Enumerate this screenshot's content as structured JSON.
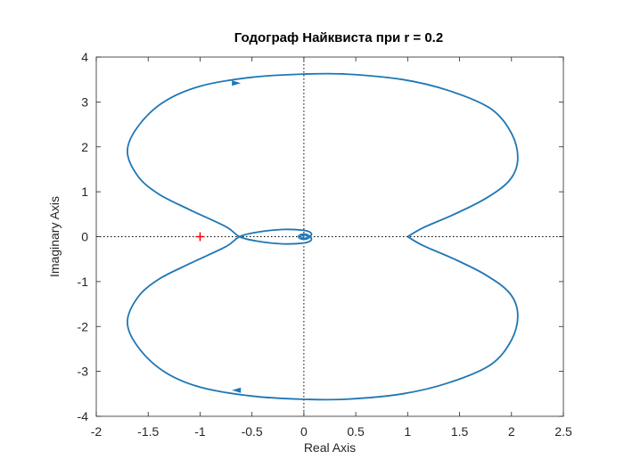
{
  "chart_data": {
    "type": "line",
    "title": "Годограф Найквиста при r = 0.2",
    "xlabel": "Real Axis",
    "ylabel": "Imaginary Axis",
    "xlim": [
      -2,
      2.5
    ],
    "ylim": [
      -4,
      4
    ],
    "xticks": [
      "-2",
      "-1.5",
      "-1",
      "-0.5",
      "0",
      "0.5",
      "1",
      "1.5",
      "2",
      "2.5"
    ],
    "yticks": [
      "-4",
      "-3",
      "-2",
      "-1",
      "0",
      "1",
      "2",
      "3",
      "4"
    ],
    "grid": false,
    "legend": "none",
    "colors": {
      "curve": "#1f77b4",
      "critical_point": "#ff0000",
      "axis_lines": "#000000"
    },
    "critical_point": {
      "x": -1,
      "y": 0,
      "marker": "+"
    },
    "reference_lines": {
      "x0_dotted": true,
      "y0_dotted": true
    },
    "series": [
      {
        "values_upper": [
          [
            1.0,
            0.0
          ],
          [
            1.15,
            0.2
          ],
          [
            1.45,
            0.5
          ],
          [
            1.75,
            0.85
          ],
          [
            1.98,
            1.25
          ],
          [
            2.06,
            1.72
          ],
          [
            2.0,
            2.3
          ],
          [
            1.8,
            2.85
          ],
          [
            1.4,
            3.25
          ],
          [
            0.95,
            3.5
          ],
          [
            0.4,
            3.62
          ],
          [
            0.0,
            3.62
          ],
          [
            -0.5,
            3.55
          ],
          [
            -1.0,
            3.35
          ],
          [
            -1.35,
            3.0
          ],
          [
            -1.6,
            2.45
          ],
          [
            -1.7,
            1.9
          ],
          [
            -1.6,
            1.35
          ],
          [
            -1.4,
            0.95
          ],
          [
            -1.1,
            0.6
          ],
          [
            -0.75,
            0.22
          ],
          [
            -0.62,
            0.0
          ],
          [
            -0.45,
            -0.1
          ],
          [
            -0.2,
            -0.16
          ],
          [
            0.0,
            -0.14
          ],
          [
            0.07,
            -0.08
          ],
          [
            0.06,
            0.0
          ],
          [
            0.02,
            0.05
          ],
          [
            -0.01,
            0.04
          ],
          [
            0.0,
            0.0
          ]
        ],
        "arrow_at": [
          -0.65,
          3.42
        ]
      },
      {
        "values_lower_mirror": true,
        "arrow_at": [
          -0.65,
          -3.42
        ]
      }
    ]
  }
}
